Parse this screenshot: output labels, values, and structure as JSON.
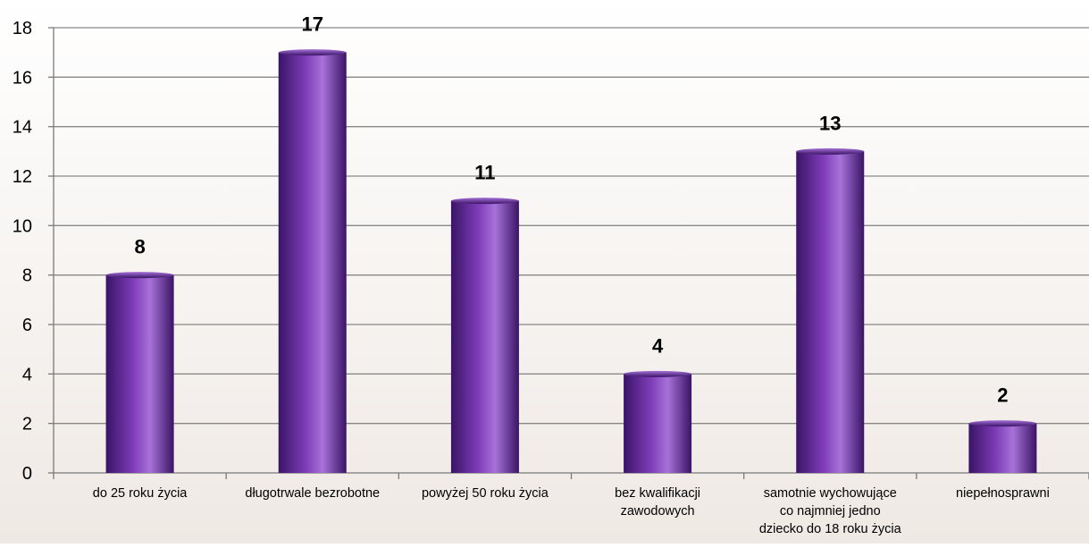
{
  "chart_data": {
    "type": "bar",
    "categories": [
      [
        "do 25 roku życia"
      ],
      [
        "długotrwale bezrobotne"
      ],
      [
        "powyżej 50 roku życia"
      ],
      [
        "bez kwalifikacji",
        "zawodowych"
      ],
      [
        "samotnie wychowujące",
        "co najmniej jedno",
        "dziecko do 18 roku życia"
      ],
      [
        "niepełnosprawni"
      ]
    ],
    "values": [
      8,
      17,
      11,
      4,
      13,
      2
    ],
    "data_labels": [
      "8",
      "17",
      "11",
      "4",
      "13",
      "2"
    ],
    "ylim": [
      0,
      18
    ],
    "yticks": [
      "0",
      "2",
      "4",
      "6",
      "8",
      "10",
      "12",
      "14",
      "16",
      "18"
    ],
    "grid": true,
    "title": "",
    "xlabel": "",
    "ylabel": "",
    "colors": {
      "bar_dark": "#3a1466",
      "bar_mid": "#7e3cb8",
      "bar_light": "#a772d8",
      "grid": "#888888",
      "axis": "#7a7a7a",
      "text": "#000000",
      "bg_top": "#ffffff",
      "bg_bottom": "#efe9e4"
    }
  }
}
